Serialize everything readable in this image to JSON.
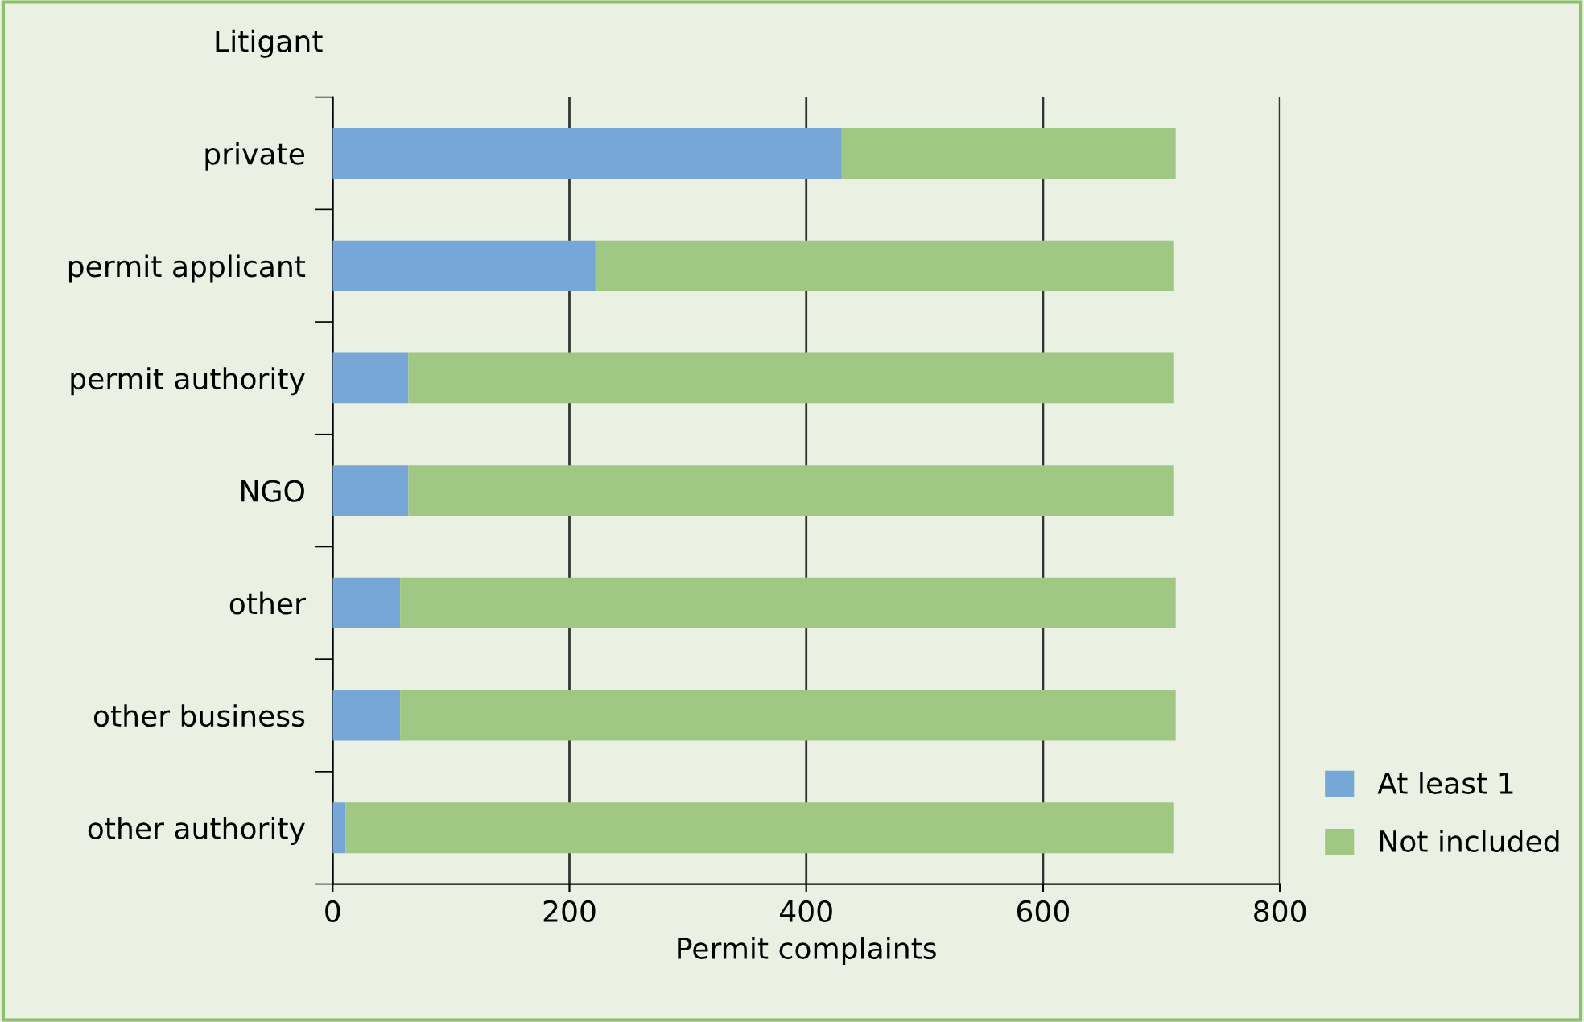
{
  "chart_data": {
    "type": "bar",
    "orientation": "horizontal",
    "stacked": true,
    "ylabel": "Litigant",
    "xlabel": "Permit complaints",
    "categories": [
      "private",
      "permit applicant",
      "permit authority",
      "NGO",
      "other",
      "other business",
      "other authority"
    ],
    "series": [
      {
        "name": "At least 1",
        "color": "#77a7d6",
        "values": [
          430,
          222,
          64,
          64,
          57,
          57,
          11
        ]
      },
      {
        "name": "Not included",
        "color": "#a0c783",
        "values": [
          282,
          488,
          646,
          646,
          655,
          655,
          699
        ]
      }
    ],
    "xlim": [
      0,
      800
    ],
    "xticks": [
      0,
      200,
      400,
      600,
      800
    ],
    "grid": "x",
    "legend": "bottom right"
  }
}
